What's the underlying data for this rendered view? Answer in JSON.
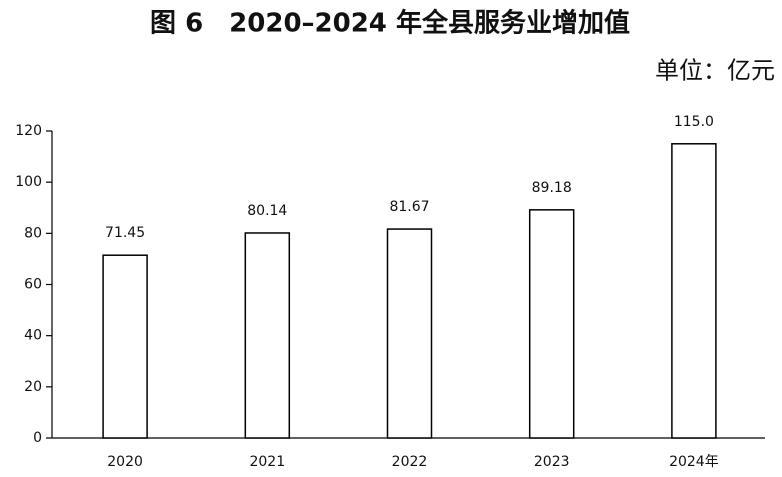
{
  "chart_data": {
    "type": "bar",
    "title": "图 6　2020–2024 年全县服务业增加值",
    "subtitle": "单位：亿元",
    "categories": [
      "2020",
      "2021",
      "2022",
      "2023",
      "2024年"
    ],
    "values": [
      71.45,
      80.14,
      81.67,
      89.18,
      115.0
    ],
    "value_labels": [
      "71.45",
      "80.14",
      "81.67",
      "89.18",
      "115.0"
    ],
    "color": "#ffffff",
    "ylim": [
      0,
      120
    ],
    "yticks": [
      0,
      20,
      40,
      60,
      80,
      100,
      120
    ],
    "grid": false
  }
}
